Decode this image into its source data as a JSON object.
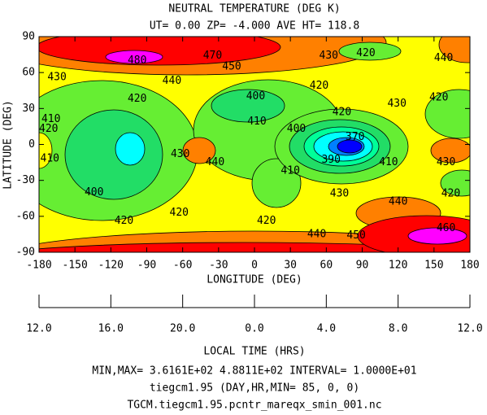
{
  "chart_data": {
    "type": "contour",
    "title": "NEUTRAL TEMPERATURE (DEG K)",
    "subtitle": "UT= 0.00 ZP= -4.000 AVE HT= 118.8",
    "xlabel": "LONGITUDE (DEG)",
    "ylabel": "LATITUDE (DEG)",
    "xlim": [
      -180,
      180
    ],
    "ylim": [
      -90,
      90
    ],
    "xticks": [
      -180,
      -150,
      -120,
      -90,
      -60,
      -30,
      0,
      30,
      60,
      90,
      120,
      150,
      180
    ],
    "yticks": [
      -90,
      -60,
      -30,
      0,
      30,
      60,
      90
    ],
    "x2label": "LOCAL TIME (HRS)",
    "x2lim": [
      12,
      36
    ],
    "x2ticks": [
      {
        "value": 12,
        "label": "12.0"
      },
      {
        "value": 16,
        "label": "16.0"
      },
      {
        "value": 20,
        "label": "20.0"
      },
      {
        "value": 24,
        "label": "0.0"
      },
      {
        "value": 28,
        "label": "4.0"
      },
      {
        "value": 32,
        "label": "8.0"
      },
      {
        "value": 36,
        "label": "12.0"
      }
    ],
    "contour_labels": [
      {
        "value": 480,
        "x": -98,
        "y": 70
      },
      {
        "value": 470,
        "x": -35,
        "y": 74
      },
      {
        "value": 450,
        "x": -19,
        "y": 65
      },
      {
        "value": 440,
        "x": -69,
        "y": 53
      },
      {
        "value": 430,
        "x": -165,
        "y": 56
      },
      {
        "value": 410,
        "x": -170,
        "y": 21
      },
      {
        "value": 420,
        "x": -98,
        "y": 38
      },
      {
        "value": 420,
        "x": -172,
        "y": 13
      },
      {
        "value": 410,
        "x": -171,
        "y": -12
      },
      {
        "value": 400,
        "x": -134,
        "y": -40
      },
      {
        "value": 430,
        "x": -62,
        "y": -8
      },
      {
        "value": 440,
        "x": -33,
        "y": -15
      },
      {
        "value": 420,
        "x": -63,
        "y": -57
      },
      {
        "value": 420,
        "x": -109,
        "y": -64
      },
      {
        "value": 420,
        "x": 10,
        "y": -64
      },
      {
        "value": 400,
        "x": 1,
        "y": 40
      },
      {
        "value": 410,
        "x": 2,
        "y": 19
      },
      {
        "value": 400,
        "x": 35,
        "y": 13
      },
      {
        "value": 370,
        "x": 84,
        "y": 6
      },
      {
        "value": 390,
        "x": 64,
        "y": -13
      },
      {
        "value": 410,
        "x": 30,
        "y": -22
      },
      {
        "value": 420,
        "x": 73,
        "y": 27
      },
      {
        "value": 420,
        "x": 54,
        "y": 49
      },
      {
        "value": 430,
        "x": 62,
        "y": 74
      },
      {
        "value": 420,
        "x": 93,
        "y": 76
      },
      {
        "value": 440,
        "x": 158,
        "y": 72
      },
      {
        "value": 430,
        "x": 119,
        "y": 34
      },
      {
        "value": 420,
        "x": 154,
        "y": 39
      },
      {
        "value": 410,
        "x": 112,
        "y": -15
      },
      {
        "value": 430,
        "x": 160,
        "y": -15
      },
      {
        "value": 420,
        "x": 164,
        "y": -41
      },
      {
        "value": 430,
        "x": 71,
        "y": -41
      },
      {
        "value": 440,
        "x": 120,
        "y": -48
      },
      {
        "value": 440,
        "x": 52,
        "y": -75
      },
      {
        "value": 450,
        "x": 85,
        "y": -76
      },
      {
        "value": 460,
        "x": 160,
        "y": -70
      }
    ],
    "footer": [
      "MIN,MAX=  3.6161E+02  4.8811E+02 INTERVAL=  1.0000E+01",
      "tiegcm1.95  (DAY,HR,MIN= 85, 0, 0)",
      "TGCM.tiegcm1.95.pcntr_mareqx_smin_001.nc"
    ]
  }
}
